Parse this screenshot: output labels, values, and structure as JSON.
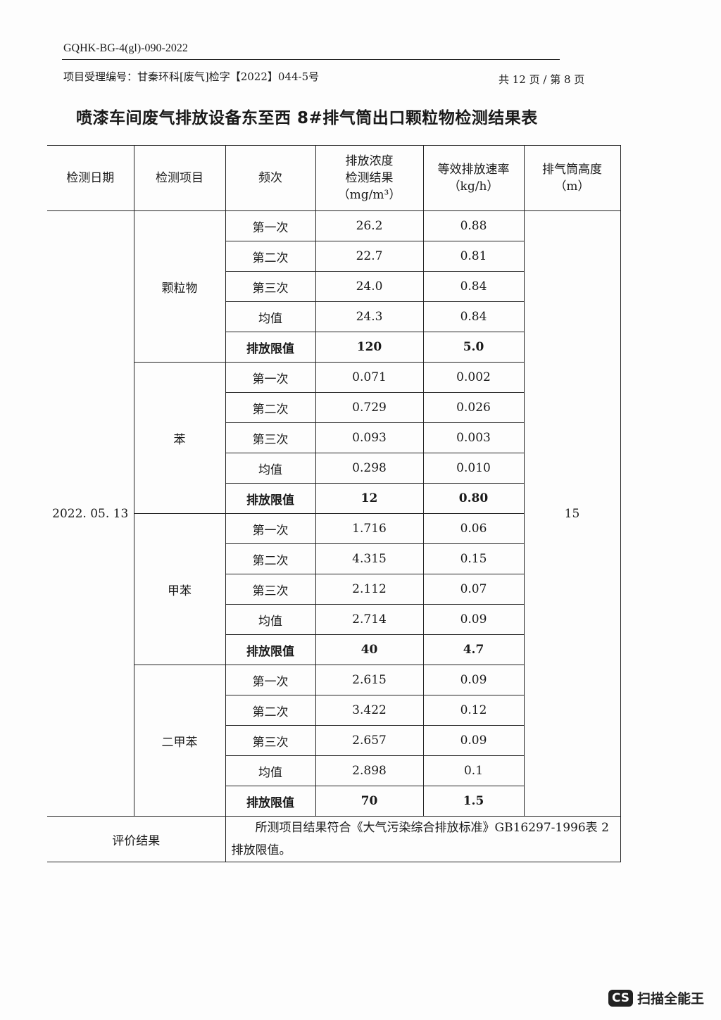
{
  "header": {
    "doc_no": "GQHK-BG-4(gl)-090-2022",
    "project_no": "项目受理编号：甘秦环科[废气]检字【2022】044-5号",
    "pages": "共 12 页 / 第 8 页"
  },
  "title": "喷漆车间废气排放设备东至西 8#排气筒出口颗粒物检测结果表",
  "table": {
    "headers": [
      "检测日期",
      "检测项目",
      "频次",
      "排放浓度\n检测结果\n（mg/m³）",
      "等效排放速率\n（kg/h）",
      "排气筒高度\n（m）"
    ],
    "date": "2022. 05. 13",
    "height": "15",
    "groups": [
      {
        "item": "颗粒物",
        "rows": [
          [
            "第一次",
            "26.2",
            "0.88"
          ],
          [
            "第二次",
            "22.7",
            "0.81"
          ],
          [
            "第三次",
            "24.0",
            "0.84"
          ],
          [
            "均值",
            "24.3",
            "0.84"
          ],
          [
            "排放限值",
            "120",
            "5.0"
          ]
        ]
      },
      {
        "item": "苯",
        "rows": [
          [
            "第一次",
            "0.071",
            "0.002"
          ],
          [
            "第二次",
            "0.729",
            "0.026"
          ],
          [
            "第三次",
            "0.093",
            "0.003"
          ],
          [
            "均值",
            "0.298",
            "0.010"
          ],
          [
            "排放限值",
            "12",
            "0.80"
          ]
        ]
      },
      {
        "item": "甲苯",
        "rows": [
          [
            "第一次",
            "1.716",
            "0.06"
          ],
          [
            "第二次",
            "4.315",
            "0.15"
          ],
          [
            "第三次",
            "2.112",
            "0.07"
          ],
          [
            "均值",
            "2.714",
            "0.09"
          ],
          [
            "排放限值",
            "40",
            "4.7"
          ]
        ]
      },
      {
        "item": "二甲苯",
        "rows": [
          [
            "第一次",
            "2.615",
            "0.09"
          ],
          [
            "第二次",
            "3.422",
            "0.12"
          ],
          [
            "第三次",
            "2.657",
            "0.09"
          ],
          [
            "均值",
            "2.898",
            "0.1"
          ],
          [
            "排放限值",
            "70",
            "1.5"
          ]
        ]
      }
    ],
    "conclusion_label": "评价结果",
    "conclusion_text": "所测项目结果符合《大气污染综合排放标准》GB16297-1996表 2 排放限值。"
  },
  "watermark": {
    "badge": "CS",
    "text": "扫描全能王"
  }
}
